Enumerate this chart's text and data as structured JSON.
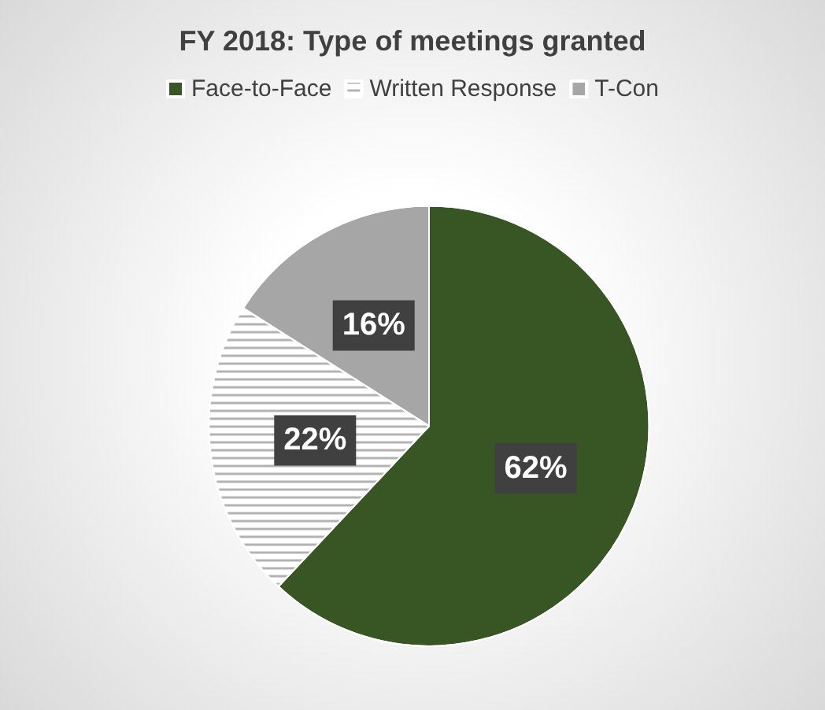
{
  "chart_data": {
    "type": "pie",
    "title": "FY 2018: Type of meetings granted",
    "categories": [
      "Face-to-Face",
      "Written Response",
      "T-Con"
    ],
    "values": [
      62,
      22,
      16
    ],
    "colors": [
      "#375623",
      "#ffffff",
      "#a6a6a6"
    ],
    "value_labels": [
      "62%",
      "22%",
      "16%"
    ],
    "legend": "top"
  }
}
